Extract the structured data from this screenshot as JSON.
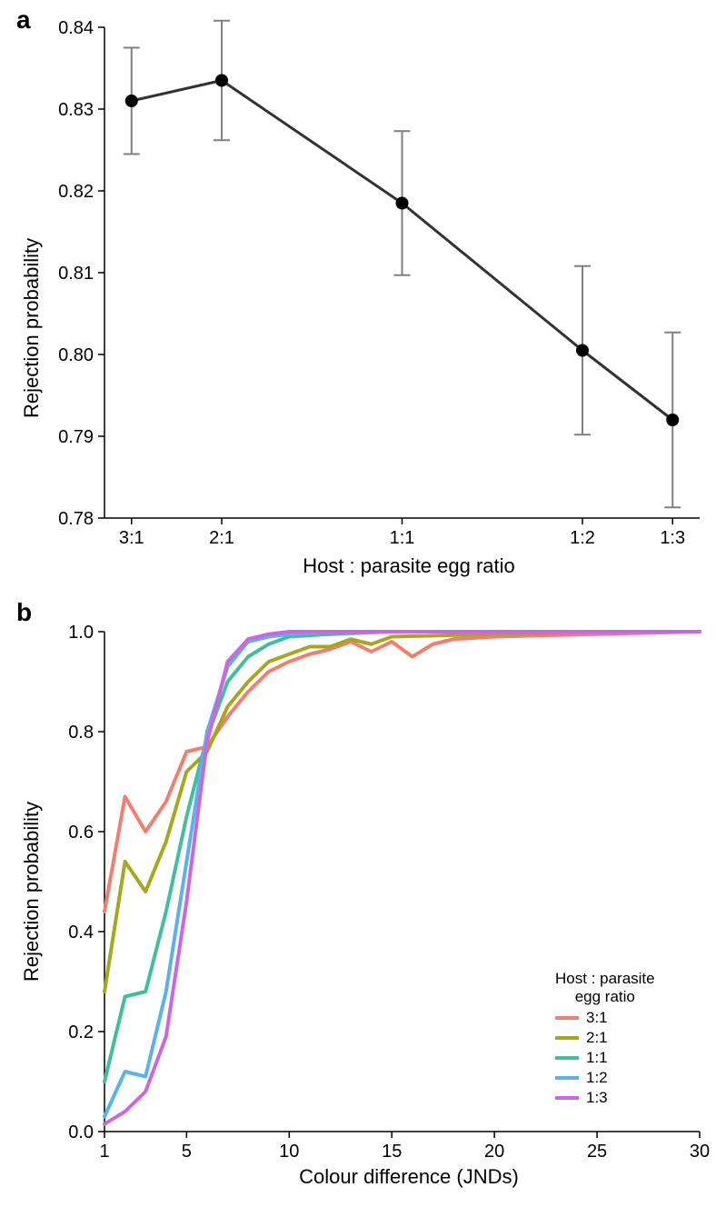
{
  "panelA": {
    "label": "a",
    "type": "line-errorbar",
    "xlabel": "Host : parasite egg ratio",
    "ylabel": "Rejection probability",
    "x_categories": [
      "3:1",
      "2:1",
      "1:1",
      "1:2",
      "1:3"
    ],
    "x_positions": [
      0,
      1,
      3,
      5,
      6
    ],
    "x_domain": [
      -0.3,
      6.3
    ],
    "ylim": [
      0.78,
      0.84
    ],
    "yticks": [
      0.78,
      0.79,
      0.8,
      0.81,
      0.82,
      0.83,
      0.84
    ],
    "ytick_labels": [
      "0.78",
      "0.79",
      "0.80",
      "0.81",
      "0.82",
      "0.83",
      "0.84"
    ],
    "points": [
      {
        "x": 0,
        "y": 0.831,
        "err": 0.0065
      },
      {
        "x": 1,
        "y": 0.8335,
        "err": 0.0073
      },
      {
        "x": 3,
        "y": 0.8185,
        "err": 0.0088
      },
      {
        "x": 5,
        "y": 0.8005,
        "err": 0.0103
      },
      {
        "x": 6,
        "y": 0.792,
        "err": 0.0107
      }
    ],
    "line_color": "#333333",
    "line_width": 3,
    "marker_color": "#000000",
    "marker_radius": 7,
    "errorbar_color": "#808080",
    "errorbar_width": 2,
    "cap_halfwidth": 9,
    "axis_color": "#000000",
    "tick_font_size": 20,
    "label_font_size": 22,
    "background": "#ffffff"
  },
  "panelB": {
    "label": "b",
    "type": "line-multi",
    "xlabel": "Colour difference (JNDs)",
    "ylabel": "Rejection probability",
    "xlim": [
      1,
      30
    ],
    "xticks": [
      1,
      5,
      10,
      15,
      20,
      25,
      30
    ],
    "xtick_labels": [
      "1",
      "5",
      "10",
      "15",
      "20",
      "25",
      "30"
    ],
    "ylim": [
      0,
      1
    ],
    "yticks": [
      0.0,
      0.2,
      0.4,
      0.6,
      0.8,
      1.0
    ],
    "ytick_labels": [
      "0.0",
      "0.2",
      "0.4",
      "0.6",
      "0.8",
      "1.0"
    ],
    "legend_title_line1": "Host : parasite",
    "legend_title_line2": "egg ratio",
    "line_width": 4,
    "axis_color": "#000000",
    "tick_font_size": 20,
    "label_font_size": 22,
    "background": "#ffffff",
    "series": [
      {
        "name": "3:1",
        "color": "#f27e6f",
        "x": [
          1,
          2,
          3,
          4,
          5,
          6,
          7,
          8,
          9,
          10,
          11,
          12,
          13,
          14,
          15,
          16,
          17,
          18,
          20,
          25,
          30
        ],
        "y": [
          0.44,
          0.67,
          0.6,
          0.66,
          0.76,
          0.77,
          0.83,
          0.88,
          0.92,
          0.94,
          0.955,
          0.965,
          0.98,
          0.96,
          0.98,
          0.95,
          0.975,
          0.985,
          0.99,
          0.995,
          1.0
        ]
      },
      {
        "name": "2:1",
        "color": "#a6a71d",
        "x": [
          1,
          2,
          3,
          4,
          5,
          6,
          7,
          8,
          9,
          10,
          11,
          12,
          13,
          14,
          15,
          20,
          25,
          30
        ],
        "y": [
          0.28,
          0.54,
          0.48,
          0.58,
          0.72,
          0.76,
          0.85,
          0.9,
          0.94,
          0.955,
          0.97,
          0.97,
          0.985,
          0.975,
          0.99,
          0.995,
          1.0,
          1.0
        ]
      },
      {
        "name": "1:1",
        "color": "#3fbf9a",
        "x": [
          1,
          2,
          3,
          4,
          5,
          6,
          7,
          8,
          9,
          10,
          12,
          15,
          20,
          25,
          30
        ],
        "y": [
          0.1,
          0.27,
          0.28,
          0.44,
          0.63,
          0.79,
          0.9,
          0.95,
          0.975,
          0.99,
          0.995,
          1.0,
          1.0,
          1.0,
          1.0
        ]
      },
      {
        "name": "1:2",
        "color": "#57b3e8",
        "x": [
          1,
          2,
          3,
          4,
          5,
          6,
          7,
          8,
          9,
          10,
          12,
          15,
          20,
          25,
          30
        ],
        "y": [
          0.03,
          0.12,
          0.11,
          0.28,
          0.54,
          0.8,
          0.93,
          0.98,
          0.99,
          0.995,
          1.0,
          1.0,
          1.0,
          1.0,
          1.0
        ]
      },
      {
        "name": "1:3",
        "color": "#cc66e0",
        "x": [
          1,
          2,
          3,
          4,
          5,
          6,
          7,
          8,
          9,
          10,
          12,
          15,
          20,
          25,
          30
        ],
        "y": [
          0.015,
          0.04,
          0.08,
          0.19,
          0.46,
          0.78,
          0.94,
          0.985,
          0.995,
          1.0,
          1.0,
          1.0,
          1.0,
          1.0,
          1.0
        ]
      }
    ]
  }
}
